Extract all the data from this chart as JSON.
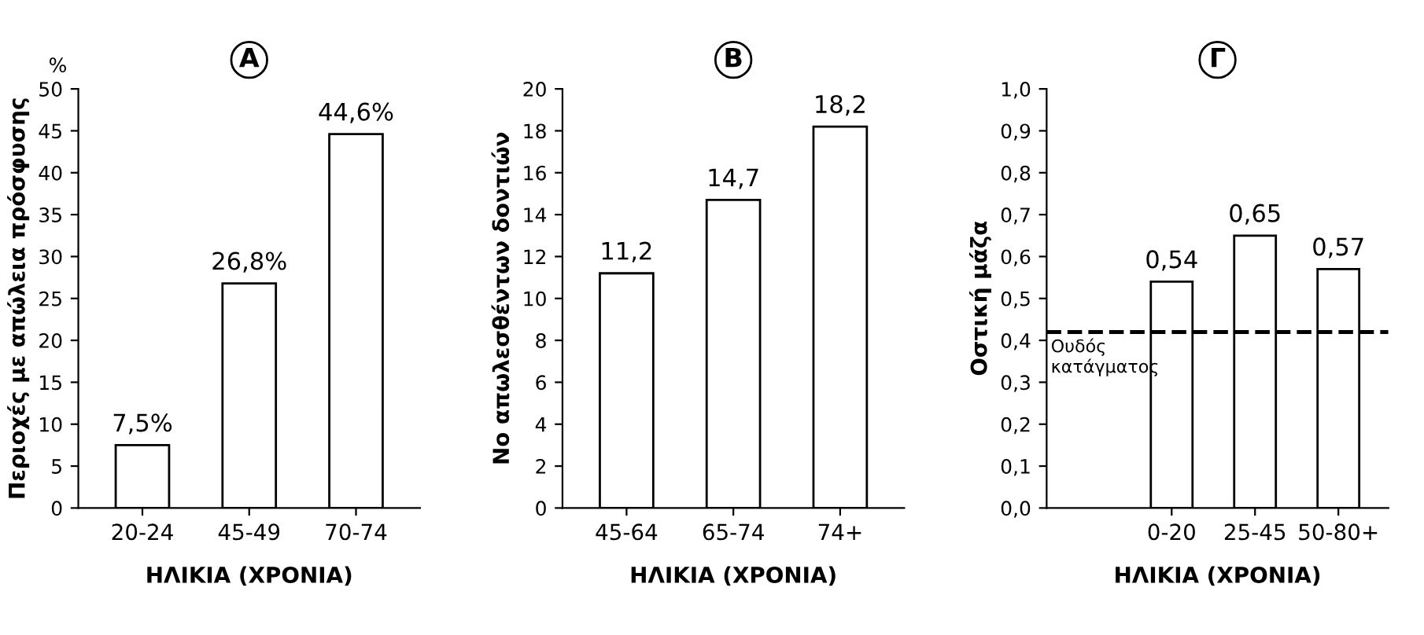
{
  "chart_data": [
    {
      "type": "bar",
      "title": "A",
      "xlabel": "ΗΛΙΚΙΑ (ΧΡΟΝΙΑ)",
      "ylabel": "Περιοχές με απώλεια πρόσφυσης",
      "annotations": [
        "%"
      ],
      "categories": [
        "20-24",
        "45-49",
        "70-74"
      ],
      "values": [
        7.5,
        26.8,
        44.6
      ],
      "value_labels": [
        "7,5%",
        "26,8%",
        "44,6%"
      ],
      "color": "#ffffff",
      "ylim": [
        0,
        50
      ],
      "yticks": [
        0,
        5,
        10,
        15,
        20,
        25,
        30,
        35,
        40,
        45,
        50
      ],
      "grid": false
    },
    {
      "type": "bar",
      "title": "B",
      "xlabel": "ΗΛΙΚΙΑ (ΧΡΟΝΙΑ)",
      "ylabel": "Νο απωλεσθέντων δοντιών",
      "categories": [
        "45-64",
        "65-74",
        "74+"
      ],
      "values": [
        11.2,
        14.7,
        18.2
      ],
      "value_labels": [
        "11,2",
        "14,7",
        "18,2"
      ],
      "color": "#ffffff",
      "ylim": [
        0,
        20
      ],
      "yticks": [
        0,
        2,
        4,
        6,
        8,
        10,
        12,
        14,
        16,
        18,
        20
      ],
      "grid": false
    },
    {
      "type": "bar",
      "title": "Γ",
      "xlabel": "ΗΛΙΚΙΑ (ΧΡΟΝΙΑ)",
      "ylabel": "Οστική μάζα",
      "categories": [
        "0-20",
        "25-45",
        "50-80+"
      ],
      "values": [
        0.54,
        0.65,
        0.57
      ],
      "value_labels": [
        "0,54",
        "0,65",
        "0,57"
      ],
      "color": "#ffffff",
      "ylim": [
        0,
        1.0
      ],
      "yticks": [
        {
          "value": 0,
          "label": "0,0"
        },
        {
          "value": 0.1,
          "label": "0,1"
        },
        {
          "value": 0.2,
          "label": "0,2"
        },
        {
          "value": 0.3,
          "label": "0,3"
        },
        {
          "value": 0.4,
          "label": "0,4"
        },
        {
          "value": 0.5,
          "label": "0,5"
        },
        {
          "value": 0.6,
          "label": "0,6"
        },
        {
          "value": 0.7,
          "label": "0,7"
        },
        {
          "value": 0.8,
          "label": "0,8"
        },
        {
          "value": 0.9,
          "label": "0,9"
        },
        {
          "value": 1.0,
          "label": "1,0"
        }
      ],
      "ref_lines": [
        {
          "axis": "y",
          "value": 0.42,
          "label": "Ουδός\nκατάγματος",
          "color": "#000000",
          "line_style": "dashed"
        }
      ],
      "grid": false
    }
  ]
}
